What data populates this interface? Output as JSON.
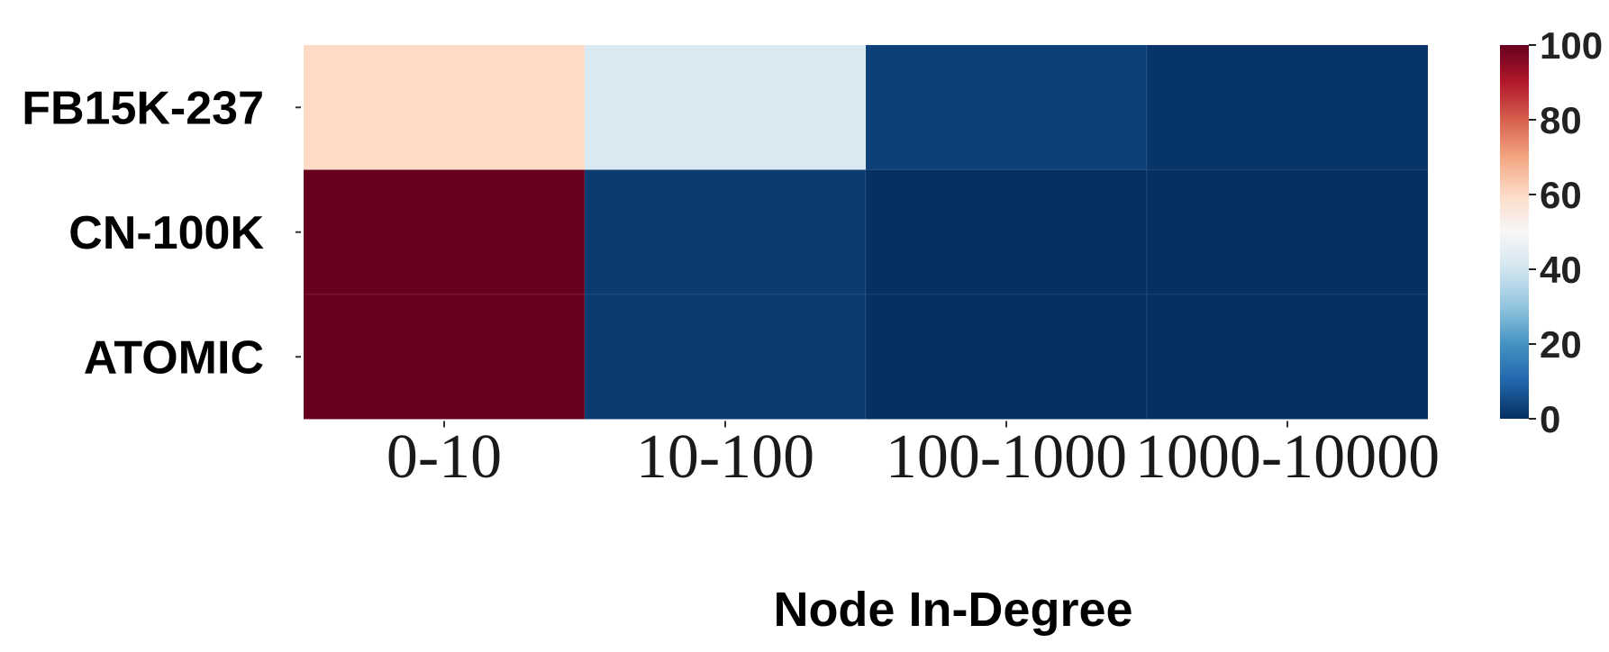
{
  "chart_data": {
    "type": "heatmap",
    "xlabel": "Node In-Degree",
    "ylabel": "",
    "x_categories": [
      "0-10",
      "10-100",
      "100-1000",
      "1000-10000"
    ],
    "y_categories": [
      "FB15K-237",
      "CN-100K",
      "ATOMIC"
    ],
    "values": [
      [
        60,
        42,
        3,
        1
      ],
      [
        100,
        2,
        0,
        0
      ],
      [
        100,
        2,
        0,
        0
      ]
    ],
    "colorbar": {
      "range": [
        0,
        100
      ],
      "ticks": [
        0,
        20,
        40,
        60,
        80,
        100
      ],
      "colormap": "RdBu_r",
      "low_color": "#053061",
      "mid_color": "#f7f7f7",
      "high_color": "#67001f"
    },
    "legend": "colorbar on the right"
  }
}
